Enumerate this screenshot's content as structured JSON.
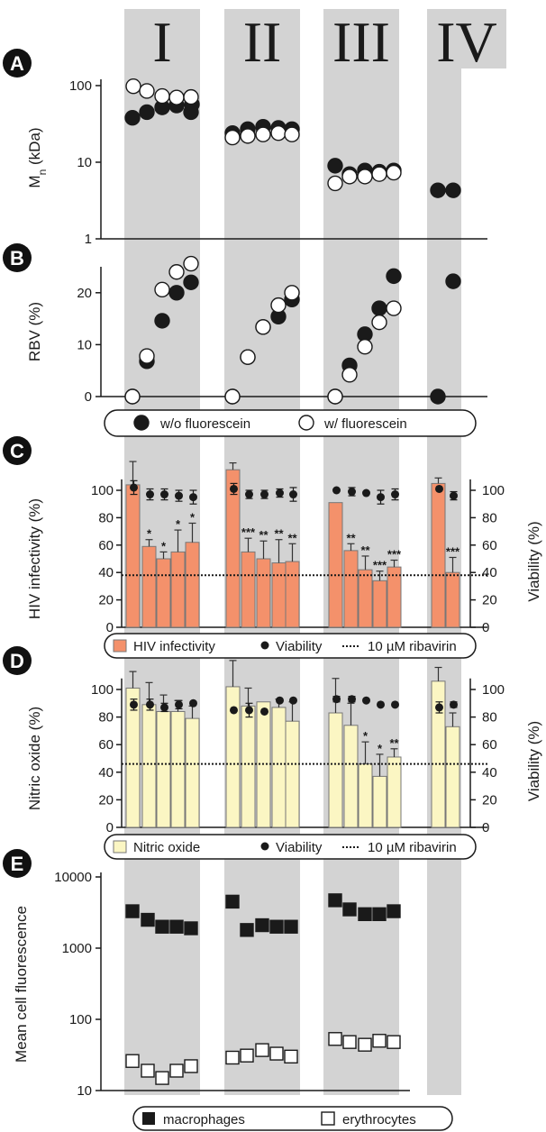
{
  "groups": [
    "I",
    "II",
    "III",
    "IV"
  ],
  "colors": {
    "band": "#d3d3d3",
    "hiv_bar": "#f4916b",
    "no_bar": "#fbf6c3",
    "bar_edge": "#777777",
    "dot": "#1a1a1a"
  },
  "chart_data": [
    {
      "panel": "A",
      "type": "scatter",
      "ylabel": "M",
      "ylabel_sub": "n",
      "ylabel_unit": " (kDa)",
      "yscale": "log",
      "ylim": [
        1,
        150
      ],
      "yticks": [
        "1",
        "10",
        "100"
      ],
      "series": [
        {
          "marker": "filled",
          "groups": [
            [
              38,
              45,
              52,
              55,
              45,
              57
            ],
            [
              24,
              27,
              29,
              28,
              27
            ],
            [
              9,
              7,
              7.8,
              7.5,
              7.8
            ],
            [
              4.3,
              4.3
            ]
          ]
        },
        {
          "marker": "open",
          "groups": [
            [
              98,
              85,
              73,
              70,
              71
            ],
            [
              21,
              22,
              23,
              24,
              23
            ],
            [
              5.3,
              6.5,
              6.5,
              7,
              7.3
            ],
            []
          ]
        }
      ]
    },
    {
      "panel": "B",
      "type": "scatter",
      "ylabel": "RBV (%)",
      "ylim": [
        0,
        25
      ],
      "yticks": [
        "0",
        "10",
        "20"
      ],
      "series": [
        {
          "marker": "filled",
          "groups": [
            [
              0,
              6.8,
              14.6,
              20,
              22
            ],
            [
              0,
              7.6,
              13.4,
              15.4,
              18.7
            ],
            [
              0,
              6,
              12,
              17,
              23.2
            ],
            [
              0,
              22.2
            ]
          ]
        },
        {
          "marker": "open",
          "groups": [
            [
              0,
              7.8,
              20.6,
              24,
              25.6
            ],
            [
              0,
              7.6,
              13.4,
              17.6,
              20
            ],
            [
              0,
              4.2,
              9.6,
              14.3,
              17
            ],
            []
          ]
        }
      ],
      "legend": [
        "w/o fluorescein",
        "w/ fluorescein"
      ]
    },
    {
      "panel": "C",
      "type": "bar",
      "ylabel": "HIV infectivity (%)",
      "y2label": "Viability (%)",
      "ylim": [
        0,
        100
      ],
      "yticks": [
        "0",
        "20",
        "40",
        "60",
        "80",
        "100"
      ],
      "bars": [
        [
          104,
          59,
          50,
          55,
          62
        ],
        [
          115,
          55,
          50,
          47,
          48
        ],
        [
          91,
          56,
          42,
          34,
          44
        ],
        [
          105,
          40
        ]
      ],
      "errors": [
        [
          17,
          5,
          5,
          16,
          14
        ],
        [
          5,
          10,
          13,
          17,
          13
        ],
        [
          0,
          5,
          10,
          7,
          5
        ],
        [
          4,
          11
        ]
      ],
      "stars": [
        [
          "",
          "*",
          "*",
          "*",
          "*"
        ],
        [
          "",
          "***",
          "**",
          "**",
          "**"
        ],
        [
          "",
          "**",
          "**",
          "***",
          "***"
        ],
        [
          "",
          "***"
        ]
      ],
      "viability": [
        [
          102,
          97,
          97,
          96,
          95
        ],
        [
          101,
          97,
          97,
          98,
          97
        ],
        [
          100,
          99,
          98,
          95,
          97
        ],
        [
          101,
          96
        ]
      ],
      "viability_err": [
        [
          5,
          4,
          4,
          4,
          5
        ],
        [
          4,
          3,
          3,
          3,
          5
        ],
        [
          1,
          3,
          1,
          5,
          4
        ],
        [
          1,
          3
        ]
      ],
      "reference": 38,
      "legend": [
        "HIV infectivity",
        "Viability",
        "10 µM ribavirin"
      ]
    },
    {
      "panel": "D",
      "type": "bar",
      "ylabel": "Nitric oxide (%)",
      "y2label": "Viability (%)",
      "ylim": [
        0,
        100
      ],
      "yticks": [
        "0",
        "20",
        "40",
        "60",
        "80",
        "100"
      ],
      "bars": [
        [
          101,
          89,
          84,
          84,
          79
        ],
        [
          102,
          88,
          91,
          87,
          77
        ],
        [
          83,
          74,
          46,
          37,
          51
        ],
        [
          106,
          73
        ]
      ],
      "errors": [
        [
          12,
          16,
          12,
          8,
          9
        ],
        [
          19,
          13,
          0,
          6,
          14
        ],
        [
          25,
          16,
          16,
          16,
          6
        ],
        [
          10,
          10
        ]
      ],
      "stars": [
        [
          "",
          "",
          "",
          "",
          ""
        ],
        [
          "",
          "",
          "",
          "",
          ""
        ],
        [
          "",
          "",
          "*",
          "*",
          "**"
        ],
        [
          "",
          "*"
        ]
      ],
      "viability": [
        [
          89,
          89,
          87,
          89,
          90
        ],
        [
          85,
          85,
          84,
          92,
          92
        ],
        [
          93,
          93,
          92,
          89,
          89
        ],
        [
          87,
          89
        ]
      ],
      "viability_err": [
        [
          4,
          4,
          3,
          3,
          1
        ],
        [
          0,
          5,
          0,
          0,
          0
        ],
        [
          2,
          2,
          0,
          1,
          0
        ],
        [
          4,
          2
        ]
      ],
      "reference": 46,
      "legend": [
        "Nitric oxide",
        "Viability",
        "10 µM ribavirin"
      ]
    },
    {
      "panel": "E",
      "type": "scatter",
      "ylabel": "Mean cell fluorescence",
      "yscale": "log",
      "ylim": [
        10,
        10000
      ],
      "yticks": [
        "10",
        "100",
        "1000",
        "10000"
      ],
      "series": [
        {
          "name": "macrophages",
          "marker": "filled-square",
          "groups": [
            [
              3300,
              2500,
              2000,
              2000,
              1900
            ],
            [
              4500,
              1800,
              2100,
              2000,
              2000
            ],
            [
              4700,
              3500,
              3000,
              3000,
              3300
            ]
          ]
        },
        {
          "name": "erythrocytes",
          "marker": "open-square",
          "groups": [
            [
              26,
              19,
              15,
              19,
              22
            ],
            [
              29,
              31,
              37,
              33,
              30
            ],
            [
              53,
              48,
              44,
              50,
              48
            ]
          ]
        }
      ],
      "legend": [
        "macrophages",
        "erythrocytes"
      ]
    }
  ]
}
